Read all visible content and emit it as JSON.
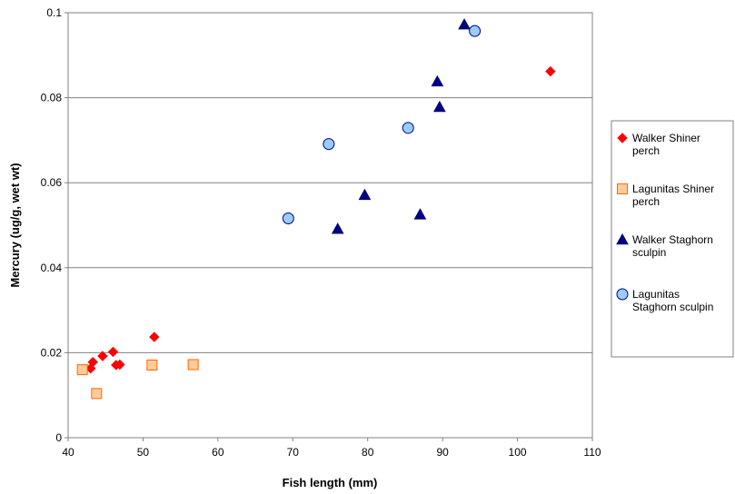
{
  "chart_data": {
    "type": "scatter",
    "title": "",
    "xlabel": "Fish length (mm)",
    "ylabel": "Mercury (ug/g, wet wt)",
    "xlim": [
      40,
      110
    ],
    "ylim": [
      0,
      0.1
    ],
    "xticks": [
      40,
      50,
      60,
      70,
      80,
      90,
      100,
      110
    ],
    "yticks": [
      0,
      0.02,
      0.04,
      0.06,
      0.08,
      0.1
    ],
    "xtick_labels": [
      "40",
      "50",
      "60",
      "70",
      "80",
      "90",
      "100",
      "110"
    ],
    "ytick_labels": [
      "0",
      "0.02",
      "0.04",
      "0.06",
      "0.08",
      "0.1"
    ],
    "grid": "horizontal",
    "legend_position": "right",
    "series": [
      {
        "name": "Walker Shiner perch",
        "legend_lines": [
          "Walker Shiner",
          "perch"
        ],
        "marker": "diamond",
        "color": "#ff0000",
        "points": [
          [
            43.0,
            0.0163
          ],
          [
            43.3,
            0.0178
          ],
          [
            44.6,
            0.0192
          ],
          [
            46.0,
            0.0202
          ],
          [
            46.4,
            0.0171
          ],
          [
            46.9,
            0.0172
          ],
          [
            51.5,
            0.0237
          ],
          [
            104.4,
            0.0862
          ]
        ]
      },
      {
        "name": "Lagunitas Shiner perch",
        "legend_lines": [
          "Lagunitas Shiner",
          "perch"
        ],
        "marker": "square",
        "color": "#ffcc99",
        "stroke": "#ff6600",
        "points": [
          [
            41.9,
            0.016
          ],
          [
            43.8,
            0.0104
          ],
          [
            51.2,
            0.0171
          ],
          [
            56.7,
            0.0172
          ]
        ]
      },
      {
        "name": "Walker Staghorn sculpin",
        "legend_lines": [
          "Walker Staghorn",
          "sculpin"
        ],
        "marker": "triangle",
        "color": "#000080",
        "points": [
          [
            76.0,
            0.0491
          ],
          [
            79.6,
            0.0571
          ],
          [
            87.0,
            0.0525
          ],
          [
            89.3,
            0.0838
          ],
          [
            89.6,
            0.0778
          ],
          [
            92.9,
            0.0972
          ]
        ]
      },
      {
        "name": "Lagunitas Staghorn sculpin",
        "legend_lines": [
          "Lagunitas",
          "Staghorn sculpin"
        ],
        "marker": "circle",
        "color": "#99ccff",
        "stroke": "#000080",
        "points": [
          [
            69.4,
            0.0516
          ],
          [
            74.8,
            0.0691
          ],
          [
            85.4,
            0.0729
          ],
          [
            94.3,
            0.0957
          ]
        ]
      }
    ]
  }
}
